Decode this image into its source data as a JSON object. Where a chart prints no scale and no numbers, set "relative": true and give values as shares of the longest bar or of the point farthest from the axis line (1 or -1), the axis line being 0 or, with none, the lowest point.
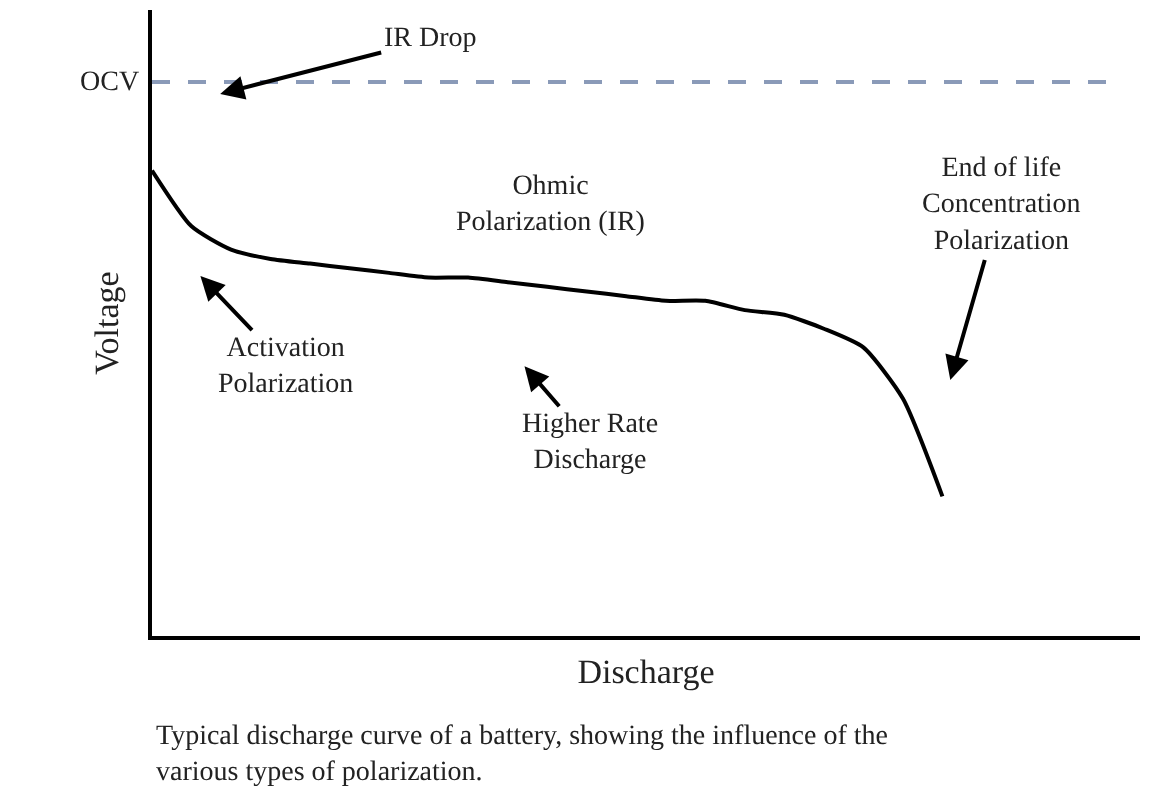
{
  "chart_data": {
    "type": "line",
    "relative": true,
    "xlabel": "Discharge",
    "ylabel": "Voltage",
    "categories": [
      null,
      null,
      null,
      null,
      null,
      null,
      null,
      null,
      null,
      null,
      null,
      null,
      null,
      null,
      null,
      null,
      null,
      null,
      null,
      null,
      null,
      null,
      null,
      null,
      null,
      null
    ],
    "series": [
      {
        "color": "#000000",
        "values": [
          1.0,
          0.88,
          0.83,
          0.81,
          0.8,
          0.79,
          0.78,
          0.77,
          0.77,
          0.76,
          0.75,
          0.74,
          0.73,
          0.72,
          0.72,
          0.7,
          0.69,
          0.66,
          0.62,
          0.51,
          0.3,
          null,
          null,
          null,
          null,
          null
        ]
      }
    ],
    "ref_lines": [
      {
        "axis": "y",
        "value": 1.19,
        "label": "OCV",
        "color": "#8a9ab8",
        "line_style": "dashed"
      }
    ],
    "annotations": [
      "IR Drop",
      "Ohmic\nPolarization (IR)",
      "Activation\nPolarization",
      "Higher Rate\nDischarge",
      "End of life\nConcentration\nPolarization",
      "Typical discharge curve of a battery, showing the influence of the\nvarious types of polarization."
    ],
    "marker": "none",
    "line_style": "solid"
  }
}
